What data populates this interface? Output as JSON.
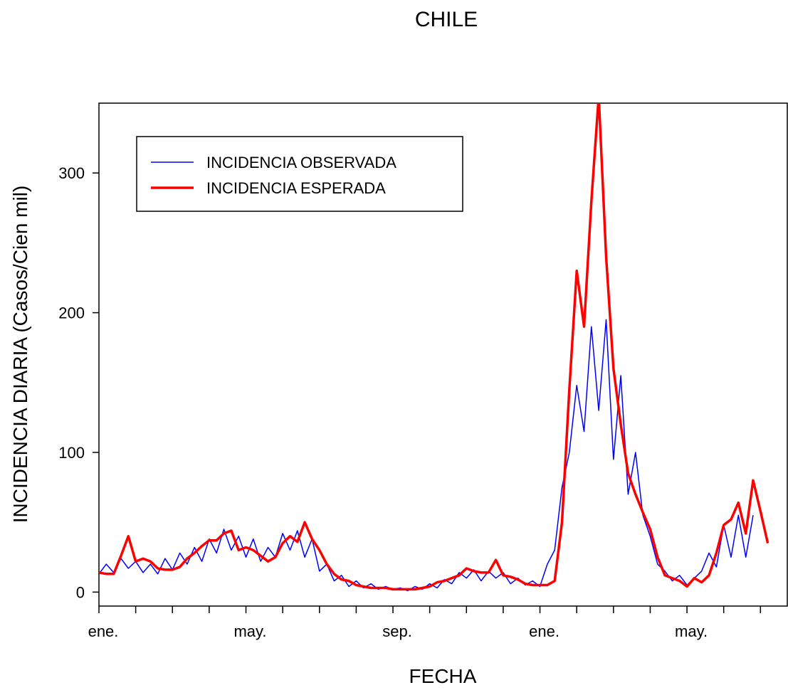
{
  "chart_data": {
    "type": "line",
    "title": "CHILE",
    "xlabel": "FECHA",
    "ylabel": "INCIDENCIA DIARIA (Casos/Cien mil)",
    "x": [
      0,
      0.2,
      0.4,
      0.6,
      0.8,
      1.0,
      1.2,
      1.4,
      1.6,
      1.8,
      2.0,
      2.2,
      2.4,
      2.6,
      2.8,
      3.0,
      3.2,
      3.4,
      3.6,
      3.8,
      4.0,
      4.2,
      4.4,
      4.6,
      4.8,
      5.0,
      5.2,
      5.4,
      5.6,
      5.8,
      6.0,
      6.2,
      6.4,
      6.6,
      6.8,
      7.0,
      7.2,
      7.4,
      7.6,
      7.8,
      8.0,
      8.2,
      8.4,
      8.6,
      8.8,
      9.0,
      9.2,
      9.4,
      9.6,
      9.8,
      10.0,
      10.2,
      10.4,
      10.6,
      10.8,
      11.0,
      11.2,
      11.4,
      11.6,
      11.8,
      12.0,
      12.2,
      12.4,
      12.6,
      12.8,
      13.0,
      13.2,
      13.4,
      13.6,
      13.8,
      14.0,
      14.2,
      14.4,
      14.6,
      14.8,
      15.0,
      15.2,
      15.4,
      15.6,
      15.8,
      16.0,
      16.2,
      16.4,
      16.6,
      16.8,
      17.0,
      17.2,
      17.4,
      17.6,
      17.8,
      18.0,
      18.2
    ],
    "series": [
      {
        "name": "INCIDENCIA OBSERVADA",
        "color": "#0000ff",
        "width": 1.5,
        "values": [
          13,
          20,
          14,
          24,
          17,
          22,
          14,
          20,
          13,
          24,
          16,
          28,
          20,
          32,
          22,
          38,
          28,
          45,
          30,
          40,
          25,
          38,
          22,
          32,
          25,
          42,
          30,
          44,
          25,
          38,
          15,
          20,
          8,
          12,
          4,
          8,
          3,
          6,
          2,
          4,
          2,
          3,
          1,
          4,
          2,
          6,
          3,
          9,
          6,
          14,
          10,
          16,
          8,
          15,
          10,
          14,
          6,
          10,
          5,
          8,
          4,
          20,
          30,
          75,
          100,
          148,
          115,
          190,
          130,
          195,
          95,
          155,
          70,
          100,
          55,
          40,
          20,
          15,
          8,
          12,
          5,
          10,
          15,
          28,
          18,
          48,
          25,
          55,
          25,
          55,
          null,
          null
        ]
      },
      {
        "name": "INCIDENCIA ESPERADA",
        "color": "#ff0000",
        "width": 3.5,
        "values": [
          14,
          13,
          13,
          26,
          40,
          22,
          24,
          22,
          17,
          16,
          16,
          18,
          24,
          28,
          33,
          37,
          37,
          42,
          44,
          30,
          32,
          30,
          26,
          22,
          25,
          35,
          40,
          36,
          50,
          38,
          30,
          20,
          13,
          9,
          8,
          5,
          4,
          3,
          3,
          3,
          2,
          2,
          2,
          2,
          3,
          4,
          7,
          8,
          10,
          12,
          17,
          15,
          14,
          14,
          23,
          12,
          11,
          9,
          6,
          5,
          5,
          5,
          8,
          50,
          145,
          230,
          190,
          280,
          355,
          240,
          160,
          120,
          85,
          70,
          57,
          45,
          25,
          12,
          10,
          8,
          4,
          10,
          7,
          12,
          28,
          48,
          52,
          64,
          42,
          80,
          58,
          35
        ]
      }
    ],
    "xlim": [
      0,
      18.73
    ],
    "xticks": [
      {
        "value": 0,
        "label": "ene."
      },
      {
        "value": 4,
        "label": "may."
      },
      {
        "value": 8,
        "label": "sep."
      },
      {
        "value": 12,
        "label": "ene."
      },
      {
        "value": 16,
        "label": "may."
      }
    ],
    "xminorticks": [
      1,
      2,
      3,
      5,
      6,
      7,
      9,
      10,
      11,
      13,
      14,
      15,
      17,
      18
    ],
    "ylim": [
      -10,
      350
    ],
    "yticks": [
      0,
      100,
      200,
      300
    ],
    "grid": false,
    "legend": "upper left"
  }
}
